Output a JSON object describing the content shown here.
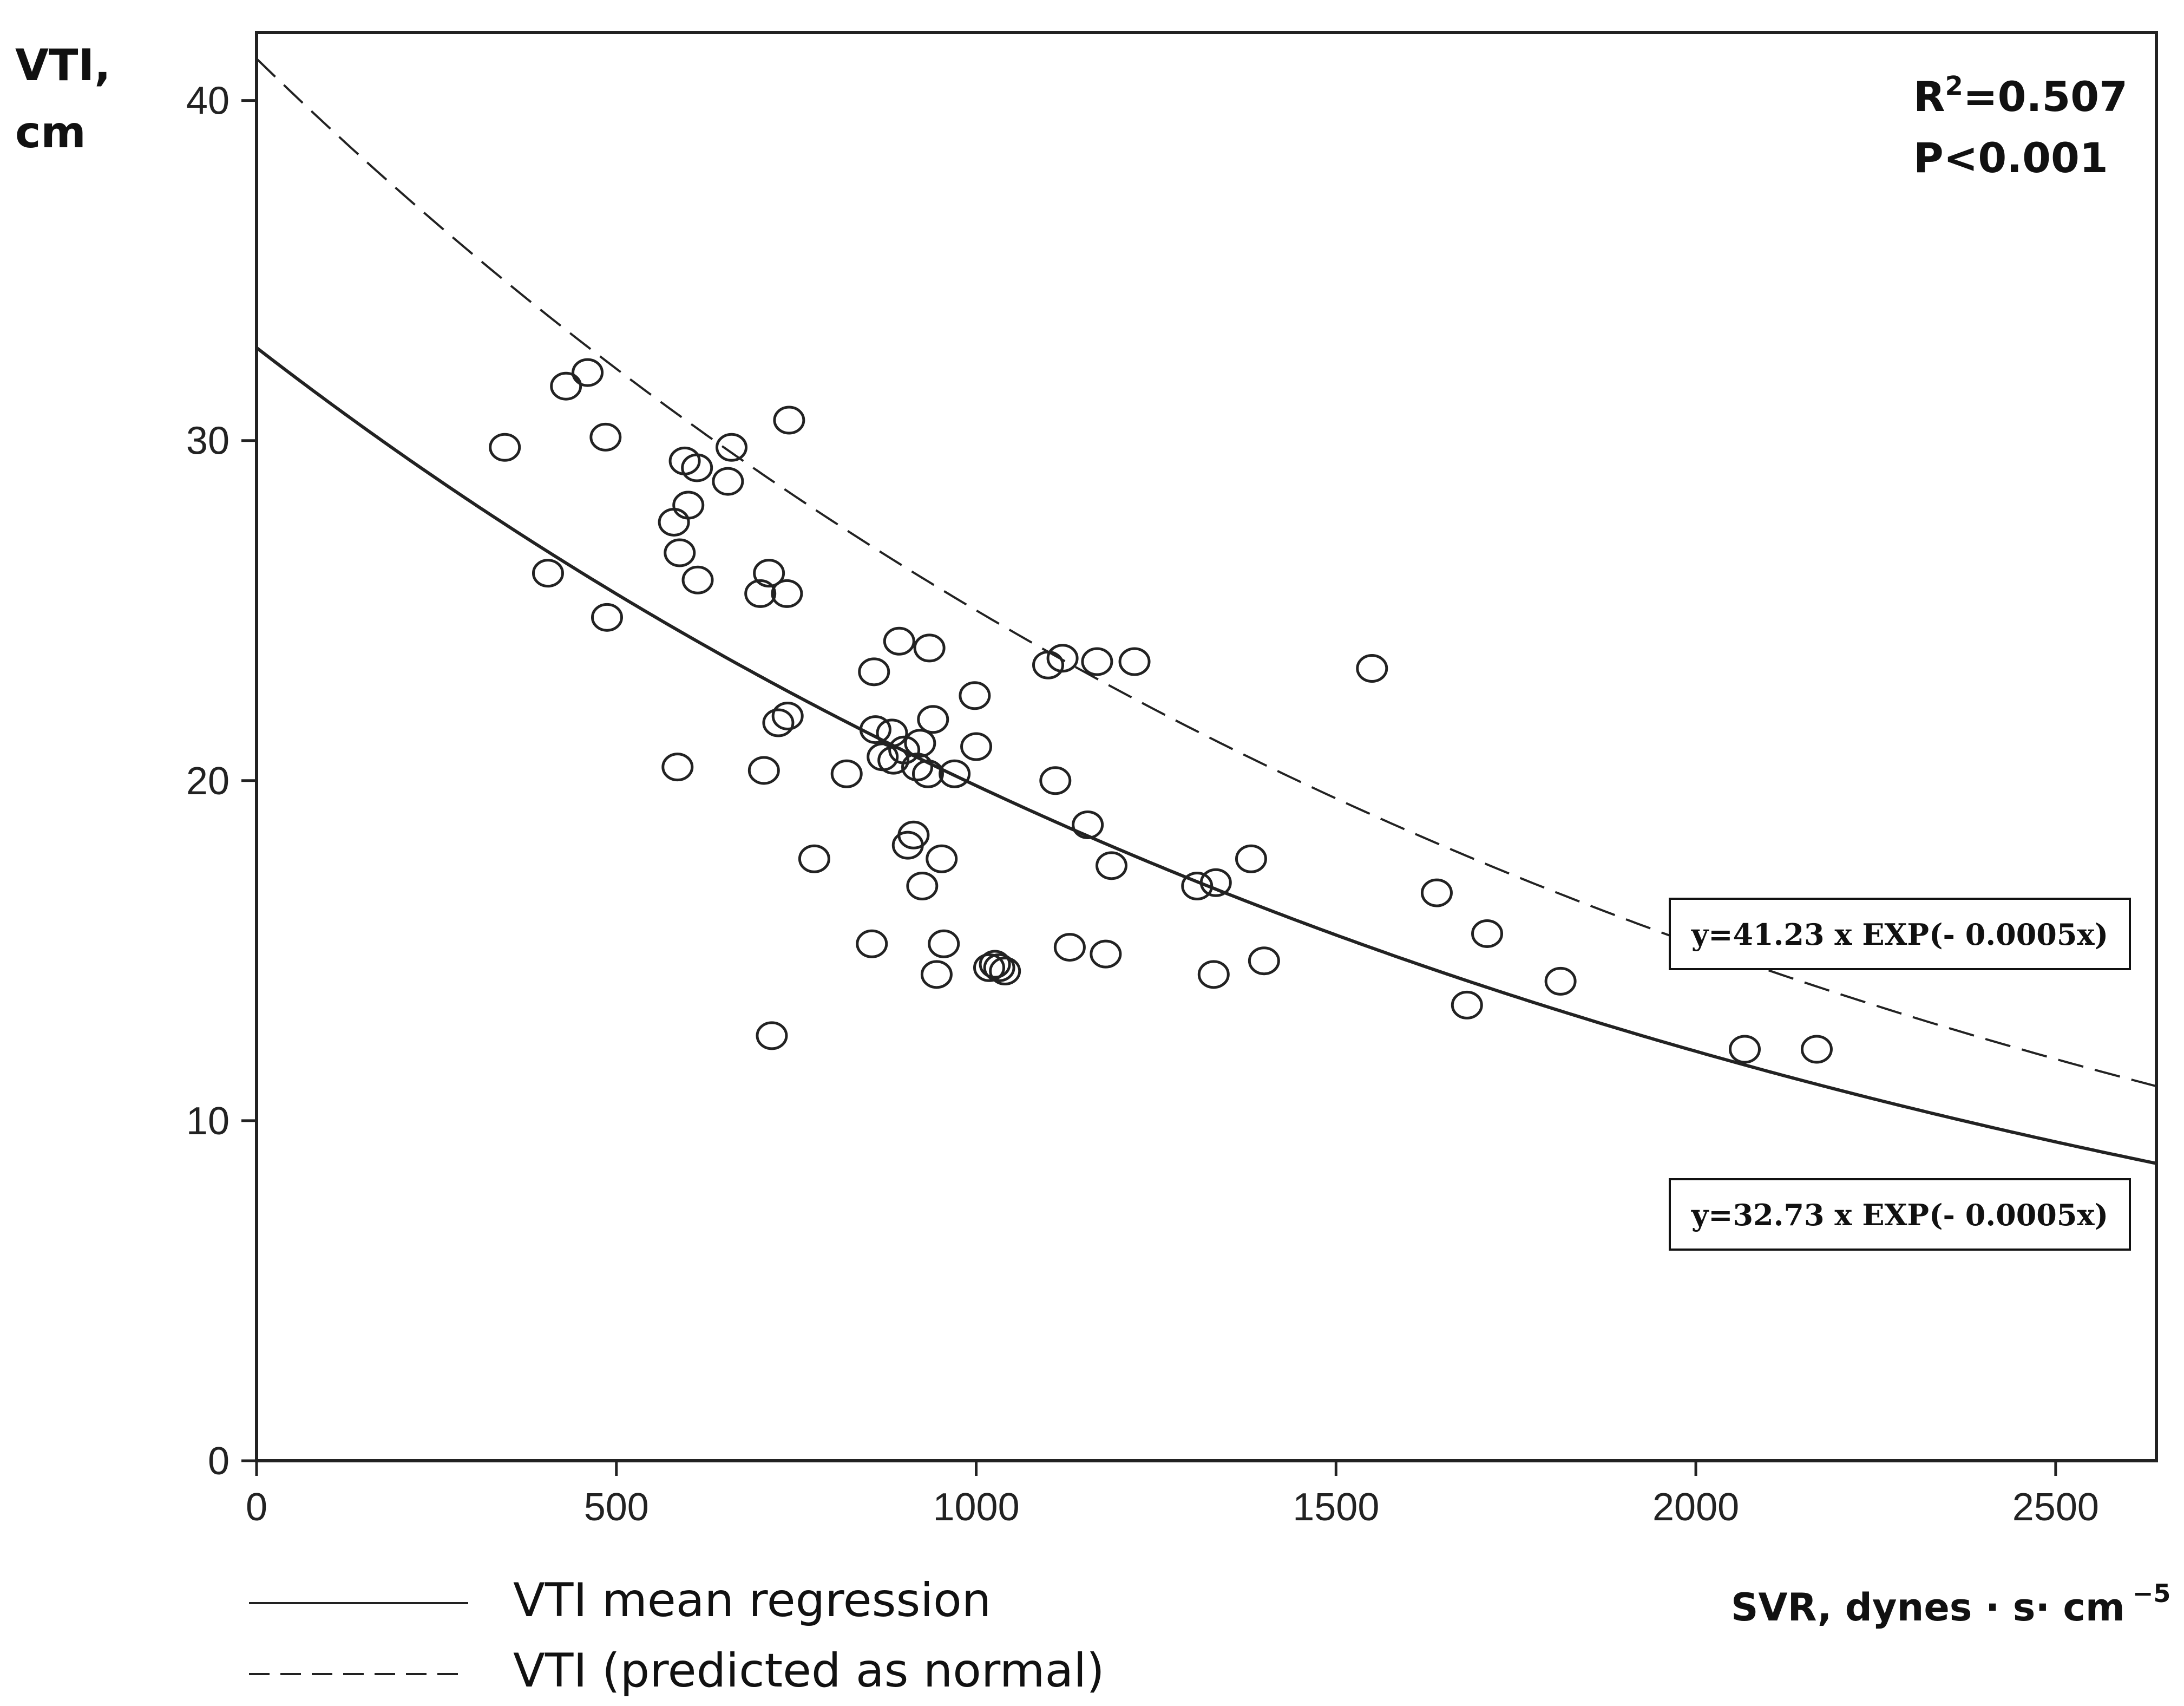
{
  "chart_data": {
    "type": "scatter",
    "ylabel_line1": "VTI,",
    "ylabel_line2": "cm",
    "xlabel": "SVR, dynes · s· cm",
    "xlabel_exponent": "−5",
    "xlim": [
      0,
      2640
    ],
    "ylim": [
      0,
      42
    ],
    "x_ticks": [
      0,
      500,
      1000,
      1500,
      2000,
      2500
    ],
    "x_tick_labels": [
      "0",
      "500",
      "1000",
      "1500",
      "2000",
      "2500"
    ],
    "y_ticks": [
      0,
      10,
      20,
      30,
      40
    ],
    "y_tick_labels": [
      "0",
      "10",
      "20",
      "30",
      "40"
    ],
    "grid": false,
    "stats": {
      "r2_prefix": "R",
      "r2_sup": "2",
      "r2_value": "=0.507",
      "p": "P<0.001"
    },
    "equations": {
      "predicted": "y=41.23 x EXP(- 0.0005x)",
      "mean": "y=32.73 x EXP(- 0.0005x)"
    },
    "series": [
      {
        "style": "solid",
        "curve": {
          "a": 32.73,
          "b": -0.0005
        }
      },
      {
        "style": "dashed",
        "curve": {
          "a": 41.23,
          "b": -0.0005
        }
      }
    ],
    "legend": {
      "placement": "bottom-left",
      "entries": [
        {
          "label": "VTI mean regression",
          "style": "solid"
        },
        {
          "label": "VTI (predicted as normal)",
          "style": "dashed"
        }
      ]
    },
    "points": [
      [
        345,
        29.8
      ],
      [
        405,
        26.1
      ],
      [
        430,
        31.6
      ],
      [
        460,
        32.0
      ],
      [
        485,
        30.1
      ],
      [
        487,
        24.8
      ],
      [
        580,
        27.6
      ],
      [
        585,
        20.4
      ],
      [
        588,
        26.7
      ],
      [
        595,
        29.4
      ],
      [
        600,
        28.1
      ],
      [
        612,
        29.2
      ],
      [
        613,
        25.9
      ],
      [
        655,
        28.8
      ],
      [
        660,
        29.8
      ],
      [
        700,
        25.5
      ],
      [
        705,
        20.3
      ],
      [
        712,
        26.1
      ],
      [
        716,
        12.5
      ],
      [
        725,
        21.7
      ],
      [
        737,
        25.5
      ],
      [
        738,
        21.9
      ],
      [
        740,
        30.6
      ],
      [
        775,
        17.7
      ],
      [
        820,
        20.2
      ],
      [
        855,
        15.2
      ],
      [
        858,
        23.2
      ],
      [
        860,
        21.5
      ],
      [
        870,
        20.7
      ],
      [
        883,
        21.4
      ],
      [
        885,
        20.6
      ],
      [
        893,
        24.1
      ],
      [
        900,
        20.9
      ],
      [
        905,
        18.1
      ],
      [
        913,
        18.4
      ],
      [
        918,
        20.4
      ],
      [
        922,
        21.1
      ],
      [
        925,
        16.9
      ],
      [
        933,
        20.2
      ],
      [
        935,
        23.9
      ],
      [
        940,
        21.8
      ],
      [
        945,
        14.3
      ],
      [
        952,
        17.7
      ],
      [
        955,
        15.2
      ],
      [
        970,
        20.2
      ],
      [
        998,
        22.5
      ],
      [
        1000,
        21.0
      ],
      [
        1018,
        14.5
      ],
      [
        1026,
        14.6
      ],
      [
        1032,
        14.5
      ],
      [
        1040,
        14.4
      ],
      [
        1100,
        23.4
      ],
      [
        1110,
        20.0
      ],
      [
        1120,
        23.6
      ],
      [
        1130,
        15.1
      ],
      [
        1155,
        18.7
      ],
      [
        1168,
        23.5
      ],
      [
        1180,
        14.9
      ],
      [
        1188,
        17.5
      ],
      [
        1220,
        23.5
      ],
      [
        1307,
        16.9
      ],
      [
        1330,
        14.3
      ],
      [
        1333,
        17.0
      ],
      [
        1382,
        17.7
      ],
      [
        1400,
        14.7
      ],
      [
        1550,
        23.3
      ],
      [
        1640,
        16.7
      ],
      [
        1682,
        13.4
      ],
      [
        1710,
        15.5
      ],
      [
        1812,
        14.1
      ],
      [
        2068,
        12.1
      ],
      [
        2168,
        12.1
      ]
    ]
  }
}
